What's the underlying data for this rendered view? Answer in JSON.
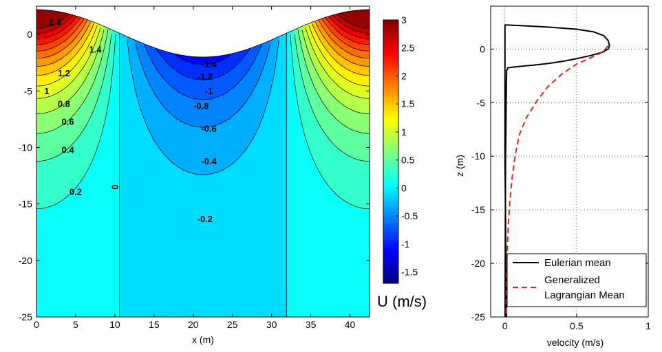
{
  "chart_data": [
    {
      "type": "heatmap",
      "subtype": "filled-contour",
      "xlabel": "x (m)",
      "ylabel": "",
      "xlim": [
        0,
        42.5
      ],
      "ylim": [
        -25,
        2.5
      ],
      "xticks": [
        "0",
        "5",
        "10",
        "15",
        "20",
        "25",
        "30",
        "35",
        "40"
      ],
      "yticks": [
        "0",
        "-5",
        "-10",
        "-15",
        "-20",
        "-25"
      ],
      "colorbar": {
        "label": "U (m/s)",
        "range": [
          -1.7,
          3
        ],
        "ticks": [
          "3",
          "2.5",
          "2",
          "1.5",
          "1",
          "0.5",
          "0",
          "-0.5",
          "-1",
          "-1.5"
        ]
      },
      "surface": {
        "wavelength": 42.5,
        "amplitude": 2.1,
        "mean_level": 0.1,
        "crest_x": [
          0,
          42.5
        ],
        "trough_x": 21.25
      },
      "zero_contour_x": [
        10.6,
        31.9
      ],
      "contour_labels": [
        {
          "text": "2.4",
          "x": 2.3,
          "y": 0.8
        },
        {
          "text": "1.4",
          "x": 7.5,
          "y": -1.6
        },
        {
          "text": "1.2",
          "x": 3.5,
          "y": -3.7
        },
        {
          "text": "1",
          "x": 1.3,
          "y": -5.3
        },
        {
          "text": "0.8",
          "x": 3.5,
          "y": -6.4
        },
        {
          "text": "0.6",
          "x": 4.0,
          "y": -8.0
        },
        {
          "text": "0.4",
          "x": 4.0,
          "y": -10.5
        },
        {
          "text": "0.2",
          "x": 5.0,
          "y": -14.2
        },
        {
          "text": "0",
          "x": 10.4,
          "y": -13.5
        },
        {
          "text": "-1.4",
          "x": 22.0,
          "y": -2.9
        },
        {
          "text": "-1.2",
          "x": 21.5,
          "y": -4.0
        },
        {
          "text": "-1",
          "x": 22.0,
          "y": -5.3
        },
        {
          "text": "-0.8",
          "x": 21.0,
          "y": -6.6
        },
        {
          "text": "-0.6",
          "x": 22.0,
          "y": -8.6
        },
        {
          "text": "-0.4",
          "x": 22.0,
          "y": -11.5
        },
        {
          "text": "-0.2",
          "x": 21.5,
          "y": -16.6
        }
      ]
    },
    {
      "type": "line",
      "xlabel": "velocity  (m/s)",
      "ylabel": "z (m)",
      "xlim": [
        -0.1,
        1
      ],
      "ylim": [
        -25,
        4
      ],
      "xticks": [
        "0",
        "0.5",
        "1"
      ],
      "yticks": [
        "0",
        "-5",
        "-10",
        "-15",
        "-20",
        "-25"
      ],
      "grid": true,
      "legend_position": "bottom",
      "series": [
        {
          "name": "Eulerian mean",
          "color": "#000000",
          "dash": "solid",
          "x": [
            0.01,
            0,
            0,
            0.1,
            0.3,
            0.5,
            0.62,
            0.69,
            0.72,
            0.73,
            0.72,
            0.68,
            0.6,
            0.5,
            0.4,
            0.3,
            0.2,
            0.1,
            0.05,
            0.02,
            0.012,
            0.01,
            0.008,
            0.006,
            0.004,
            0.003,
            0.002,
            0.001,
            0.001
          ],
          "y": [
            -25,
            -10,
            2.25,
            2.2,
            2.05,
            1.85,
            1.6,
            1.25,
            0.8,
            0.3,
            0,
            -0.3,
            -0.6,
            -0.9,
            -1.15,
            -1.35,
            -1.5,
            -1.62,
            -1.7,
            -1.75,
            -2,
            -3,
            -5,
            -8,
            -10,
            -15,
            -20,
            -24,
            -25
          ]
        },
        {
          "name": "Generalized\nLagrangian Mean",
          "color": "#e8231e",
          "dash": "dashed",
          "x": [
            0.72,
            0.68,
            0.6,
            0.5,
            0.4,
            0.3,
            0.22,
            0.15,
            0.1,
            0.07,
            0.05,
            0.035,
            0.025,
            0.018,
            0.013,
            0.01,
            0.008
          ],
          "y": [
            0.3,
            -0.3,
            -0.8,
            -1.4,
            -2.3,
            -3.5,
            -4.9,
            -6.4,
            -8,
            -10,
            -12,
            -14,
            -16,
            -18,
            -20,
            -22,
            -25
          ]
        }
      ],
      "legend": [
        "Eulerian mean",
        "Generalized",
        "Lagrangian Mean"
      ]
    }
  ]
}
